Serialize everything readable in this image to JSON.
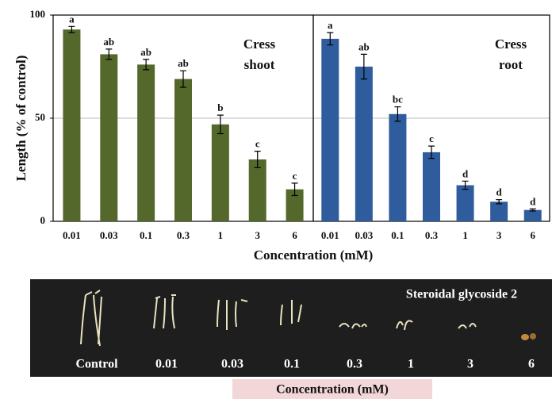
{
  "chart_data": [
    {
      "type": "bar",
      "title": [
        "Cress",
        "shoot"
      ],
      "ylabel": "Length (% of control)",
      "xlabel": "Concentration (mM)",
      "categories": [
        "0.01",
        "0.03",
        "0.1",
        "0.3",
        "1",
        "3",
        "6"
      ],
      "series": [
        {
          "color": "#54682c",
          "values": [
            93,
            81,
            76,
            69,
            47,
            30,
            15.5
          ],
          "errors": [
            1.5,
            2.5,
            2.5,
            4,
            4.5,
            4,
            3
          ],
          "letters": [
            "a",
            "ab",
            "ab",
            "ab",
            "b",
            "c",
            "c"
          ]
        }
      ],
      "ylim": [
        0,
        100
      ],
      "yticks": [
        0,
        50,
        100
      ],
      "grid": true
    },
    {
      "type": "bar",
      "title": [
        "Cress",
        "root"
      ],
      "categories": [
        "0.01",
        "0.03",
        "0.1",
        "0.3",
        "1",
        "3",
        "6"
      ],
      "series": [
        {
          "color": "#2f5c9c",
          "values": [
            88.5,
            75,
            52,
            33.5,
            17.5,
            9.5,
            5.5
          ],
          "errors": [
            3,
            6,
            3.5,
            3,
            2,
            1,
            0.5
          ],
          "letters": [
            "a",
            "ab",
            "bc",
            "c",
            "d",
            "d",
            "d"
          ]
        }
      ],
      "ylim": [
        0,
        100
      ],
      "grid": true
    }
  ],
  "photo": {
    "caption": "Steroidal glycoside 2",
    "labels": [
      "Control",
      "0.01",
      "0.03",
      "0.1",
      "0.3",
      "1",
      "3",
      "6"
    ],
    "xlabel": "Concentration (mM)"
  }
}
